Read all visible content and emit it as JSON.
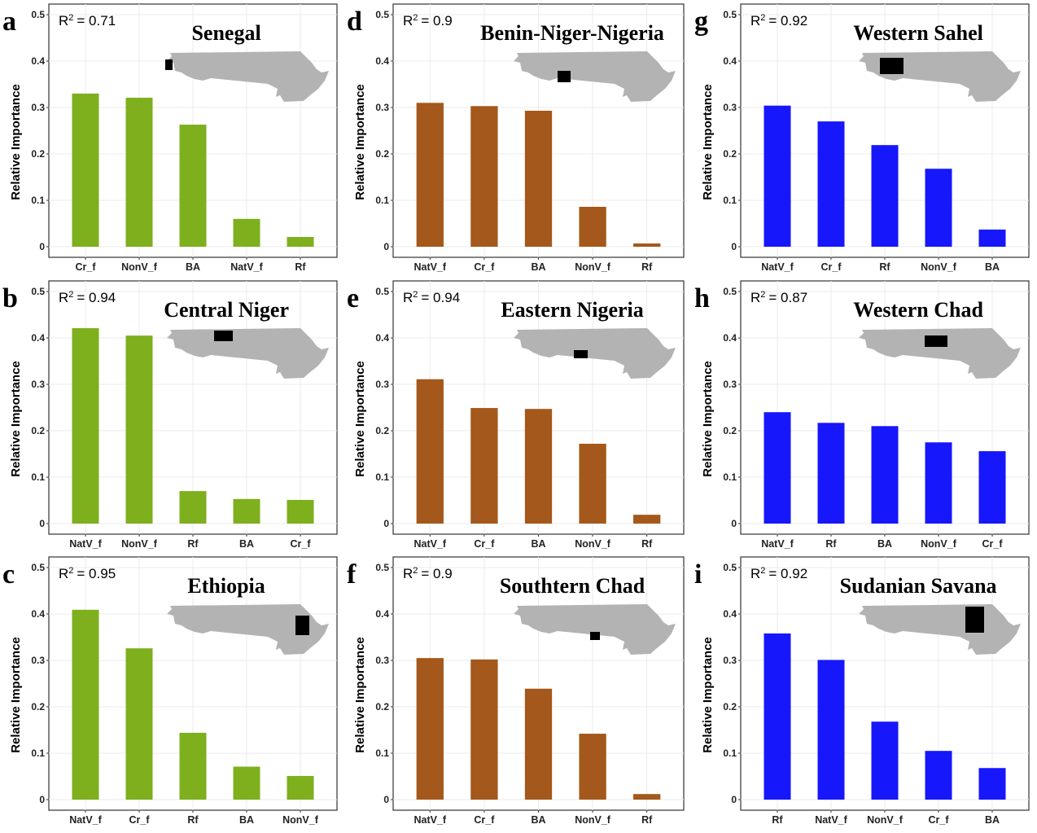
{
  "figure": {
    "y_axis_title": "Relative Importance",
    "y_ticks": [
      "0",
      "0.1",
      "0.2",
      "0.3",
      "0.4",
      "0.5"
    ]
  },
  "colors": {
    "green": "#7eaf1d",
    "brown": "#a4581b",
    "blue": "#1717fb"
  },
  "chart_data": [
    {
      "type": "bar",
      "panel": "a",
      "title": "Senegal",
      "r2_label": "R",
      "r2_value": "= 0.71",
      "color": "green",
      "ylabel": "Relative Importance",
      "ylim": [
        0,
        0.5
      ],
      "categories": [
        "Cr_f",
        "NonV_f",
        "BA",
        "NatV_f",
        "Rf"
      ],
      "values": [
        0.33,
        0.321,
        0.263,
        0.06,
        0.021
      ],
      "map_highlight": "far-west"
    },
    {
      "type": "bar",
      "panel": "b",
      "title": "Central Niger",
      "r2_label": "R",
      "r2_value": "= 0.94",
      "color": "green",
      "ylabel": "Relative Importance",
      "ylim": [
        0,
        0.5
      ],
      "categories": [
        "NatV_f",
        "NonV_f",
        "Rf",
        "BA",
        "Cr_f"
      ],
      "values": [
        0.421,
        0.405,
        0.07,
        0.053,
        0.051
      ],
      "map_highlight": "west-center-north"
    },
    {
      "type": "bar",
      "panel": "c",
      "title": "Ethiopia",
      "r2_label": "R",
      "r2_value": "= 0.95",
      "color": "green",
      "ylabel": "Relative Importance",
      "ylim": [
        0,
        0.5
      ],
      "categories": [
        "NatV_f",
        "Cr_f",
        "Rf",
        "BA",
        "NonV_f"
      ],
      "values": [
        0.409,
        0.326,
        0.144,
        0.071,
        0.051
      ],
      "map_highlight": "east"
    },
    {
      "type": "bar",
      "panel": "d",
      "title": "Benin-Niger-Nigeria",
      "r2_label": "R",
      "r2_value": "= 0.9",
      "color": "brown",
      "ylabel": "Relative Importance",
      "ylim": [
        0,
        0.5
      ],
      "categories": [
        "NatV_f",
        "Cr_f",
        "BA",
        "NonV_f",
        "Rf"
      ],
      "values": [
        0.31,
        0.303,
        0.293,
        0.086,
        0.007
      ],
      "map_highlight": "west-center-south"
    },
    {
      "type": "bar",
      "panel": "e",
      "title": "Eastern Nigeria",
      "r2_label": "R",
      "r2_value": "= 0.94",
      "color": "brown",
      "ylabel": "Relative Importance",
      "ylim": [
        0,
        0.5
      ],
      "categories": [
        "NatV_f",
        "Cr_f",
        "BA",
        "NonV_f",
        "Rf"
      ],
      "values": [
        0.311,
        0.249,
        0.247,
        0.172,
        0.019
      ],
      "map_highlight": "center-south"
    },
    {
      "type": "bar",
      "panel": "f",
      "title": "Southtern Chad",
      "r2_label": "R",
      "r2_value": "= 0.9",
      "color": "brown",
      "ylabel": "Relative Importance",
      "ylim": [
        0,
        0.5
      ],
      "categories": [
        "NatV_f",
        "Cr_f",
        "BA",
        "NonV_f",
        "Rf"
      ],
      "values": [
        0.305,
        0.302,
        0.239,
        0.142,
        0.012
      ],
      "map_highlight": "center-east-south"
    },
    {
      "type": "bar",
      "panel": "g",
      "title": "Western Sahel",
      "r2_label": "R",
      "r2_value": "= 0.92",
      "color": "blue",
      "ylabel": "Relative Importance",
      "ylim": [
        0,
        0.5
      ],
      "categories": [
        "NatV_f",
        "Cr_f",
        "Rf",
        "NonV_f",
        "BA"
      ],
      "values": [
        0.304,
        0.27,
        0.219,
        0.168,
        0.037
      ],
      "map_highlight": "west"
    },
    {
      "type": "bar",
      "panel": "h",
      "title": "Western Chad",
      "r2_label": "R",
      "r2_value": "= 0.87",
      "color": "blue",
      "ylabel": "Relative Importance",
      "ylim": [
        0,
        0.5
      ],
      "categories": [
        "NatV_f",
        "Rf",
        "BA",
        "NonV_f",
        "Cr_f"
      ],
      "values": [
        0.24,
        0.217,
        0.21,
        0.175,
        0.156
      ],
      "map_highlight": "center"
    },
    {
      "type": "bar",
      "panel": "i",
      "title": "Sudanian Savana",
      "r2_label": "R",
      "r2_value": "= 0.92",
      "color": "blue",
      "ylabel": "Relative Importance",
      "ylim": [
        0,
        0.5
      ],
      "categories": [
        "Rf",
        "NatV_f",
        "NonV_f",
        "Cr_f",
        "BA"
      ],
      "values": [
        0.358,
        0.301,
        0.168,
        0.105,
        0.068
      ],
      "map_highlight": "east-center"
    }
  ]
}
